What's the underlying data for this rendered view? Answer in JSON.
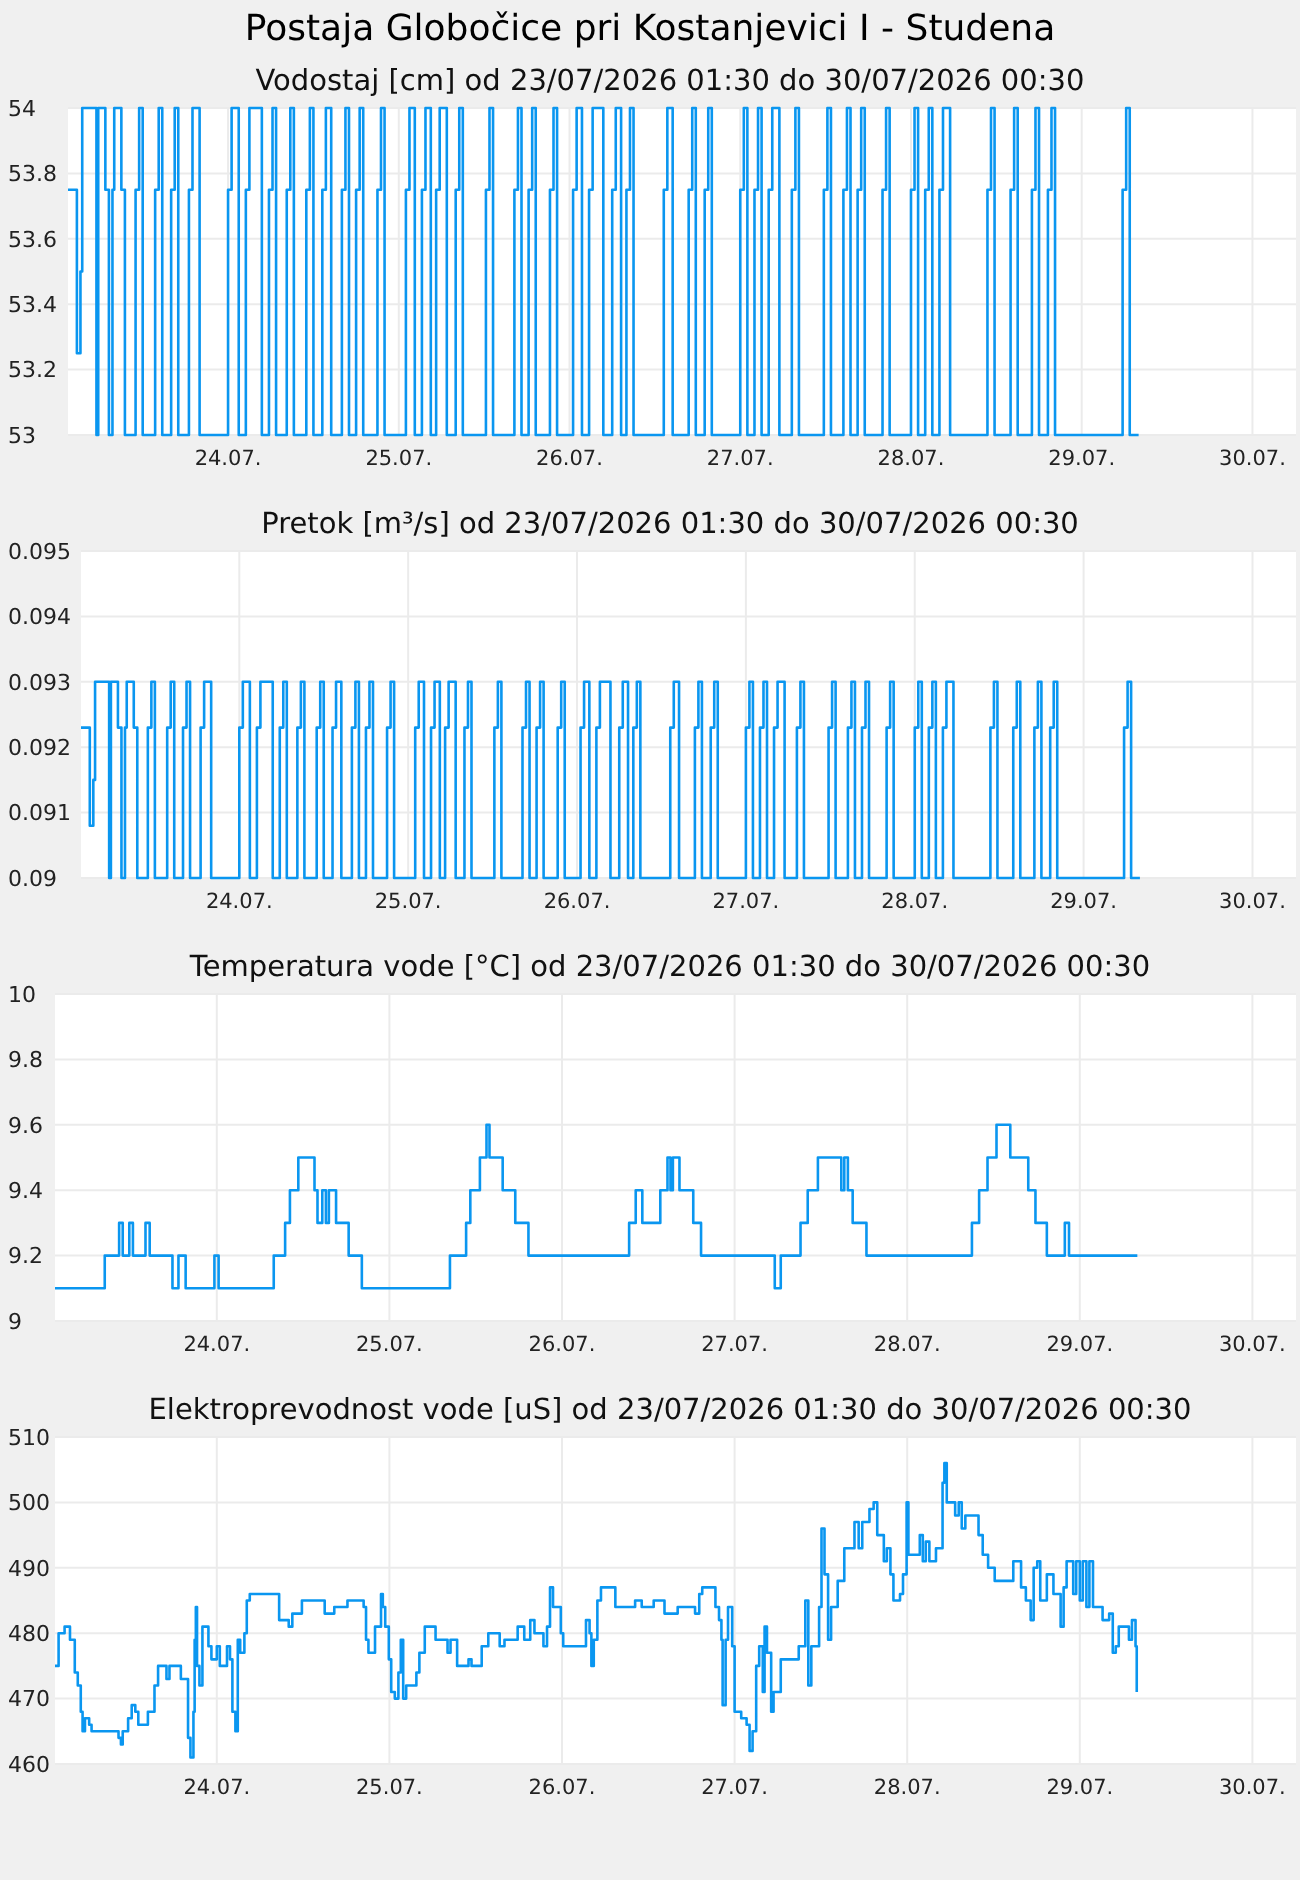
{
  "chart_data": [
    {
      "type": "step",
      "title": "Postaja Globočice pri Kostanjevici I - Studena",
      "subtitle": "Vodostaj [cm] od 23/07/2026 01:30 do 30/07/2026 00:30",
      "color": "#0a96f0",
      "grid": true,
      "xlim": [
        "2026-07-23T01:30",
        "2026-07-30T00:30"
      ],
      "xticks": [
        {
          "value": "2026-07-24",
          "label": "24.07."
        },
        {
          "value": "2026-07-25",
          "label": "25.07."
        },
        {
          "value": "2026-07-26",
          "label": "26.07."
        },
        {
          "value": "2026-07-27",
          "label": "27.07."
        },
        {
          "value": "2026-07-28",
          "label": "28.07."
        },
        {
          "value": "2026-07-29",
          "label": "29.07."
        },
        {
          "value": "2026-07-30",
          "label": "30.07."
        }
      ],
      "ylim": [
        53,
        54
      ],
      "yticks": [
        53,
        53.2,
        53.4,
        53.6,
        53.8,
        54
      ],
      "x": [
        "2026-07-23T01:30",
        "2026-07-23T02:45",
        "2026-07-23T03:15",
        "2026-07-23T03:30",
        "2026-07-23T05:30",
        "2026-07-23T05:45",
        "2026-07-23T06:45",
        "2026-07-23T07:15",
        "2026-07-23T07:45",
        "2026-07-23T08:00",
        "2026-07-23T09:00",
        "2026-07-23T09:30",
        "2026-07-23T11:00",
        "2026-07-23T11:30",
        "2026-07-23T12:00",
        "2026-07-23T13:45",
        "2026-07-23T14:15",
        "2026-07-23T14:45",
        "2026-07-23T16:00",
        "2026-07-23T16:30",
        "2026-07-23T17:00",
        "2026-07-23T18:30",
        "2026-07-23T19:00",
        "2026-07-23T20:00",
        "2026-07-24T00:00",
        "2026-07-24T00:30",
        "2026-07-24T01:30",
        "2026-07-24T02:30",
        "2026-07-24T03:00",
        "2026-07-24T04:45",
        "2026-07-24T05:45",
        "2026-07-24T06:15",
        "2026-07-24T06:45",
        "2026-07-24T08:15",
        "2026-07-24T08:45",
        "2026-07-24T09:15",
        "2026-07-24T11:00",
        "2026-07-24T11:30",
        "2026-07-24T12:00",
        "2026-07-24T13:15",
        "2026-07-24T13:45",
        "2026-07-24T14:30",
        "2026-07-24T16:00",
        "2026-07-24T16:30",
        "2026-07-24T17:00",
        "2026-07-24T18:00",
        "2026-07-24T18:30",
        "2026-07-24T19:00",
        "2026-07-24T21:00",
        "2026-07-24T21:30",
        "2026-07-24T22:00",
        "2026-07-25T01:00",
        "2026-07-25T01:30",
        "2026-07-25T02:15",
        "2026-07-25T03:15",
        "2026-07-25T03:45",
        "2026-07-25T04:30",
        "2026-07-25T05:15",
        "2026-07-25T05:45",
        "2026-07-25T06:45",
        "2026-07-25T08:00",
        "2026-07-25T08:30",
        "2026-07-25T09:00",
        "2026-07-25T12:15",
        "2026-07-25T12:45",
        "2026-07-25T13:15",
        "2026-07-25T16:15",
        "2026-07-25T16:45",
        "2026-07-25T17:15",
        "2026-07-25T18:15",
        "2026-07-25T18:45",
        "2026-07-25T19:15",
        "2026-07-25T21:15",
        "2026-07-25T21:45",
        "2026-07-25T22:15",
        "2026-07-26T00:30",
        "2026-07-26T01:00",
        "2026-07-26T01:45",
        "2026-07-26T02:45",
        "2026-07-26T03:15",
        "2026-07-26T04:45",
        "2026-07-26T06:00",
        "2026-07-26T06:30",
        "2026-07-26T07:15",
        "2026-07-26T08:00",
        "2026-07-26T08:30",
        "2026-07-26T09:00",
        "2026-07-26T13:15",
        "2026-07-26T13:45",
        "2026-07-26T14:30",
        "2026-07-26T16:45",
        "2026-07-26T17:15",
        "2026-07-26T17:45",
        "2026-07-26T19:00",
        "2026-07-26T19:30",
        "2026-07-26T20:00",
        "2026-07-27T00:00",
        "2026-07-27T00:30",
        "2026-07-27T01:00",
        "2026-07-27T02:00",
        "2026-07-27T02:30",
        "2026-07-27T03:00",
        "2026-07-27T04:00",
        "2026-07-27T04:30",
        "2026-07-27T05:30",
        "2026-07-27T07:15",
        "2026-07-27T07:45",
        "2026-07-27T08:15",
        "2026-07-27T11:45",
        "2026-07-27T12:15",
        "2026-07-27T12:45",
        "2026-07-27T14:30",
        "2026-07-27T15:00",
        "2026-07-27T15:30",
        "2026-07-27T16:30",
        "2026-07-27T17:00",
        "2026-07-27T17:30",
        "2026-07-27T20:00",
        "2026-07-27T20:30",
        "2026-07-27T21:00",
        "2026-07-28T00:00",
        "2026-07-28T00:30",
        "2026-07-28T01:00",
        "2026-07-28T02:00",
        "2026-07-28T02:30",
        "2026-07-28T03:00",
        "2026-07-28T04:00",
        "2026-07-28T04:30",
        "2026-07-28T05:30",
        "2026-07-28T10:45",
        "2026-07-28T11:15",
        "2026-07-28T11:45",
        "2026-07-28T14:00",
        "2026-07-28T14:30",
        "2026-07-28T15:00",
        "2026-07-28T17:00",
        "2026-07-28T17:30",
        "2026-07-28T18:00",
        "2026-07-28T19:15",
        "2026-07-28T19:45",
        "2026-07-28T20:15",
        "2026-07-29T05:45",
        "2026-07-29T06:15",
        "2026-07-29T06:45",
        "2026-07-29T08:00"
      ],
      "values": [
        53.75,
        53.25,
        53.5,
        54,
        53,
        54,
        53.75,
        53,
        53.75,
        54,
        53.75,
        53,
        53.75,
        54,
        53,
        53.75,
        54,
        53,
        53.75,
        54,
        53,
        53.75,
        54,
        53,
        53.75,
        54,
        53,
        53.75,
        54,
        53,
        53.75,
        54,
        53,
        53.75,
        54,
        53,
        53.75,
        54,
        53,
        53.75,
        54,
        53,
        53.75,
        54,
        53,
        53.75,
        54,
        53,
        53.75,
        54,
        53,
        53.75,
        54,
        53,
        53.75,
        54,
        53,
        53.75,
        54,
        53,
        53.75,
        54,
        53,
        53.75,
        54,
        53,
        53.75,
        54,
        53,
        53.75,
        54,
        53,
        53.75,
        54,
        53,
        53.75,
        54,
        53,
        53.75,
        54,
        53,
        53.75,
        54,
        53,
        53.75,
        54,
        53,
        53.75,
        54,
        53,
        53.75,
        54,
        53,
        53.75,
        54,
        53,
        53.75,
        54,
        53,
        53.75,
        54,
        53,
        53.75,
        54,
        53,
        53.75,
        54,
        53,
        53.75,
        54,
        53,
        53.75,
        54,
        53,
        53.75,
        54,
        53,
        53.75,
        54,
        53,
        53.75,
        54,
        53,
        53.75,
        54,
        53,
        53.75,
        54,
        53,
        53.75,
        54,
        53,
        53.75,
        54,
        53,
        53.75,
        54,
        53,
        53.75,
        54,
        53,
        53.75,
        54,
        53,
        53
      ]
    },
    {
      "type": "step",
      "title": "Pretok [m³/s] od 23/07/2026 01:30 do 30/07/2026 00:30",
      "color": "#0a96f0",
      "grid": true,
      "xlim": [
        "2026-07-23T01:30",
        "2026-07-30T00:30"
      ],
      "xticks": [
        {
          "value": "2026-07-24",
          "label": "24.07."
        },
        {
          "value": "2026-07-25",
          "label": "25.07."
        },
        {
          "value": "2026-07-26",
          "label": "26.07."
        },
        {
          "value": "2026-07-27",
          "label": "27.07."
        },
        {
          "value": "2026-07-28",
          "label": "28.07."
        },
        {
          "value": "2026-07-29",
          "label": "29.07."
        },
        {
          "value": "2026-07-30",
          "label": "30.07."
        }
      ],
      "ylim": [
        0.09,
        0.095
      ],
      "yticks": [
        0.09,
        0.091,
        0.092,
        0.093,
        0.094,
        0.095
      ],
      "x": [
        "2026-07-23T01:30",
        "2026-07-23T02:45",
        "2026-07-23T03:15",
        "2026-07-23T03:30",
        "2026-07-23T05:30",
        "2026-07-23T05:45",
        "2026-07-23T06:45",
        "2026-07-23T07:15",
        "2026-07-23T07:45",
        "2026-07-23T08:00",
        "2026-07-23T09:00",
        "2026-07-23T09:30",
        "2026-07-23T11:00",
        "2026-07-23T11:30",
        "2026-07-23T12:00",
        "2026-07-23T13:45",
        "2026-07-23T14:15",
        "2026-07-23T14:45",
        "2026-07-23T16:00",
        "2026-07-23T16:30",
        "2026-07-23T17:00",
        "2026-07-23T18:30",
        "2026-07-23T19:00",
        "2026-07-23T20:00",
        "2026-07-24T00:00",
        "2026-07-24T00:30",
        "2026-07-24T01:30",
        "2026-07-24T02:30",
        "2026-07-24T03:00",
        "2026-07-24T04:45",
        "2026-07-24T05:45",
        "2026-07-24T06:15",
        "2026-07-24T06:45",
        "2026-07-24T08:15",
        "2026-07-24T08:45",
        "2026-07-24T09:15",
        "2026-07-24T11:00",
        "2026-07-24T11:30",
        "2026-07-24T12:00",
        "2026-07-24T13:15",
        "2026-07-24T13:45",
        "2026-07-24T14:30",
        "2026-07-24T16:00",
        "2026-07-24T16:30",
        "2026-07-24T17:00",
        "2026-07-24T18:00",
        "2026-07-24T18:30",
        "2026-07-24T19:00",
        "2026-07-24T21:00",
        "2026-07-24T21:30",
        "2026-07-24T22:00",
        "2026-07-25T01:00",
        "2026-07-25T01:30",
        "2026-07-25T02:15",
        "2026-07-25T03:15",
        "2026-07-25T03:45",
        "2026-07-25T04:30",
        "2026-07-25T05:15",
        "2026-07-25T05:45",
        "2026-07-25T06:45",
        "2026-07-25T08:00",
        "2026-07-25T08:30",
        "2026-07-25T09:00",
        "2026-07-25T12:15",
        "2026-07-25T12:45",
        "2026-07-25T13:15",
        "2026-07-25T16:15",
        "2026-07-25T16:45",
        "2026-07-25T17:15",
        "2026-07-25T18:15",
        "2026-07-25T18:45",
        "2026-07-25T19:15",
        "2026-07-25T21:15",
        "2026-07-25T21:45",
        "2026-07-25T22:15",
        "2026-07-26T00:30",
        "2026-07-26T01:00",
        "2026-07-26T01:45",
        "2026-07-26T02:45",
        "2026-07-26T03:15",
        "2026-07-26T04:45",
        "2026-07-26T06:00",
        "2026-07-26T06:30",
        "2026-07-26T07:15",
        "2026-07-26T08:00",
        "2026-07-26T08:30",
        "2026-07-26T09:00",
        "2026-07-26T13:15",
        "2026-07-26T13:45",
        "2026-07-26T14:30",
        "2026-07-26T16:45",
        "2026-07-26T17:15",
        "2026-07-26T17:45",
        "2026-07-26T19:00",
        "2026-07-26T19:30",
        "2026-07-26T20:00",
        "2026-07-27T00:00",
        "2026-07-27T00:30",
        "2026-07-27T01:00",
        "2026-07-27T02:00",
        "2026-07-27T02:30",
        "2026-07-27T03:00",
        "2026-07-27T04:00",
        "2026-07-27T04:30",
        "2026-07-27T05:30",
        "2026-07-27T07:15",
        "2026-07-27T07:45",
        "2026-07-27T08:15",
        "2026-07-27T11:45",
        "2026-07-27T12:15",
        "2026-07-27T12:45",
        "2026-07-27T14:30",
        "2026-07-27T15:00",
        "2026-07-27T15:30",
        "2026-07-27T16:30",
        "2026-07-27T17:00",
        "2026-07-27T17:30",
        "2026-07-27T20:00",
        "2026-07-27T20:30",
        "2026-07-27T21:00",
        "2026-07-28T00:00",
        "2026-07-28T00:30",
        "2026-07-28T01:00",
        "2026-07-28T02:00",
        "2026-07-28T02:30",
        "2026-07-28T03:00",
        "2026-07-28T04:00",
        "2026-07-28T04:30",
        "2026-07-28T05:30",
        "2026-07-28T10:45",
        "2026-07-28T11:15",
        "2026-07-28T11:45",
        "2026-07-28T14:00",
        "2026-07-28T14:30",
        "2026-07-28T15:00",
        "2026-07-28T17:00",
        "2026-07-28T17:30",
        "2026-07-28T18:00",
        "2026-07-28T19:15",
        "2026-07-28T19:45",
        "2026-07-28T20:15",
        "2026-07-29T05:45",
        "2026-07-29T06:15",
        "2026-07-29T06:45",
        "2026-07-29T08:00"
      ],
      "values": [
        0.0923,
        0.0908,
        0.0915,
        0.093,
        0.09,
        0.093,
        0.0923,
        0.09,
        0.0923,
        0.093,
        0.0923,
        0.09,
        0.0923,
        0.093,
        0.09,
        0.0923,
        0.093,
        0.09,
        0.0923,
        0.093,
        0.09,
        0.0923,
        0.093,
        0.09,
        0.0923,
        0.093,
        0.09,
        0.0923,
        0.093,
        0.09,
        0.0923,
        0.093,
        0.09,
        0.0923,
        0.093,
        0.09,
        0.0923,
        0.093,
        0.09,
        0.0923,
        0.093,
        0.09,
        0.0923,
        0.093,
        0.09,
        0.0923,
        0.093,
        0.09,
        0.0923,
        0.093,
        0.09,
        0.0923,
        0.093,
        0.09,
        0.0923,
        0.093,
        0.09,
        0.0923,
        0.093,
        0.09,
        0.0923,
        0.093,
        0.09,
        0.0923,
        0.093,
        0.09,
        0.0923,
        0.093,
        0.09,
        0.0923,
        0.093,
        0.09,
        0.0923,
        0.093,
        0.09,
        0.0923,
        0.093,
        0.09,
        0.0923,
        0.093,
        0.09,
        0.0923,
        0.093,
        0.09,
        0.0923,
        0.093,
        0.09,
        0.0923,
        0.093,
        0.09,
        0.0923,
        0.093,
        0.09,
        0.0923,
        0.093,
        0.09,
        0.0923,
        0.093,
        0.09,
        0.0923,
        0.093,
        0.09,
        0.0923,
        0.093,
        0.09,
        0.0923,
        0.093,
        0.09,
        0.0923,
        0.093,
        0.09,
        0.0923,
        0.093,
        0.09,
        0.0923,
        0.093,
        0.09,
        0.0923,
        0.093,
        0.09,
        0.0923,
        0.093,
        0.09,
        0.0923,
        0.093,
        0.09,
        0.0923,
        0.093,
        0.09,
        0.0923,
        0.093,
        0.09,
        0.0923,
        0.093,
        0.09,
        0.0923,
        0.093,
        0.09,
        0.0923,
        0.093,
        0.09,
        0.0923,
        0.093,
        0.09,
        0.09
      ]
    },
    {
      "type": "step",
      "title": "Temperatura vode [°C] od 23/07/2026 01:30 do 30/07/2026 00:30",
      "color": "#0a96f0",
      "grid": true,
      "xlim": [
        "2026-07-23T01:30",
        "2026-07-30T00:30"
      ],
      "xticks": [
        {
          "value": "2026-07-24",
          "label": "24.07."
        },
        {
          "value": "2026-07-25",
          "label": "25.07."
        },
        {
          "value": "2026-07-26",
          "label": "26.07."
        },
        {
          "value": "2026-07-27",
          "label": "27.07."
        },
        {
          "value": "2026-07-28",
          "label": "28.07."
        },
        {
          "value": "2026-07-29",
          "label": "29.07."
        },
        {
          "value": "2026-07-30",
          "label": "30.07."
        }
      ],
      "ylim": [
        9,
        10
      ],
      "yticks": [
        9,
        9.2,
        9.4,
        9.6,
        9.8,
        10
      ],
      "x": [
        "2026-07-23T01:30",
        "2026-07-23T08:25",
        "2026-07-23T10:25",
        "2026-07-23T10:55",
        "2026-07-23T11:50",
        "2026-07-23T12:20",
        "2026-07-23T14:05",
        "2026-07-23T14:40",
        "2026-07-23T17:50",
        "2026-07-23T18:40",
        "2026-07-23T19:40",
        "2026-07-23T23:40",
        "2026-07-24T00:15",
        "2026-07-24T07:55",
        "2026-07-24T09:30",
        "2026-07-24T10:10",
        "2026-07-24T11:20",
        "2026-07-24T13:35",
        "2026-07-24T14:00",
        "2026-07-24T14:40",
        "2026-07-24T15:10",
        "2026-07-24T15:35",
        "2026-07-24T16:35",
        "2026-07-24T18:20",
        "2026-07-24T20:10",
        "2026-07-25T08:25",
        "2026-07-25T10:40",
        "2026-07-25T11:15",
        "2026-07-25T12:35",
        "2026-07-25T13:30",
        "2026-07-25T13:55",
        "2026-07-25T15:45",
        "2026-07-25T17:30",
        "2026-07-25T19:20",
        "2026-07-26T09:20",
        "2026-07-26T10:15",
        "2026-07-26T11:10",
        "2026-07-26T13:40",
        "2026-07-26T14:40",
        "2026-07-26T15:05",
        "2026-07-26T15:25",
        "2026-07-26T16:20",
        "2026-07-26T18:15",
        "2026-07-26T19:20",
        "2026-07-27T05:35",
        "2026-07-27T06:25",
        "2026-07-27T09:10",
        "2026-07-27T10:10",
        "2026-07-27T11:35",
        "2026-07-27T14:50",
        "2026-07-27T15:15",
        "2026-07-27T15:45",
        "2026-07-27T16:25",
        "2026-07-27T18:20",
        "2026-07-28T09:00",
        "2026-07-28T10:00",
        "2026-07-28T11:10",
        "2026-07-28T12:25",
        "2026-07-28T14:20",
        "2026-07-28T16:50",
        "2026-07-28T17:50",
        "2026-07-28T19:25",
        "2026-07-28T21:55",
        "2026-07-28T22:30",
        "2026-07-29T08:00"
      ],
      "values": [
        9.1,
        9.2,
        9.3,
        9.2,
        9.3,
        9.2,
        9.3,
        9.2,
        9.1,
        9.2,
        9.1,
        9.2,
        9.1,
        9.2,
        9.3,
        9.4,
        9.5,
        9.4,
        9.3,
        9.4,
        9.3,
        9.4,
        9.3,
        9.2,
        9.1,
        9.2,
        9.3,
        9.4,
        9.5,
        9.6,
        9.5,
        9.4,
        9.3,
        9.2,
        9.3,
        9.4,
        9.3,
        9.4,
        9.5,
        9.4,
        9.5,
        9.4,
        9.3,
        9.2,
        9.1,
        9.2,
        9.3,
        9.4,
        9.5,
        9.4,
        9.5,
        9.4,
        9.3,
        9.2,
        9.3,
        9.4,
        9.5,
        9.6,
        9.5,
        9.4,
        9.3,
        9.2,
        9.3,
        9.2,
        9.2
      ]
    },
    {
      "type": "step",
      "title": "Elektroprevodnost vode [uS] od 23/07/2026 01:30 do 30/07/2026 00:30",
      "color": "#0a96f0",
      "grid": true,
      "xlim": [
        "2026-07-23T01:30",
        "2026-07-30T00:30"
      ],
      "xticks": [
        {
          "value": "2026-07-24",
          "label": "24.07."
        },
        {
          "value": "2026-07-25",
          "label": "25.07."
        },
        {
          "value": "2026-07-26",
          "label": "26.07."
        },
        {
          "value": "2026-07-27",
          "label": "27.07."
        },
        {
          "value": "2026-07-28",
          "label": "28.07."
        },
        {
          "value": "2026-07-29",
          "label": "29.07."
        },
        {
          "value": "2026-07-30",
          "label": "30.07."
        }
      ],
      "ylim": [
        460,
        510
      ],
      "yticks": [
        460,
        470,
        480,
        490,
        500,
        510
      ],
      "x": [
        "2026-07-23T01:30",
        "2026-07-23T02:00",
        "2026-07-23T02:50",
        "2026-07-23T03:35",
        "2026-07-23T04:15",
        "2026-07-23T04:40",
        "2026-07-23T05:05",
        "2026-07-23T05:20",
        "2026-07-23T05:40",
        "2026-07-23T06:15",
        "2026-07-23T06:35",
        "2026-07-23T09:55",
        "2026-07-23T10:20",
        "2026-07-23T10:40",
        "2026-07-23T10:55",
        "2026-07-23T11:40",
        "2026-07-23T12:10",
        "2026-07-23T12:40",
        "2026-07-23T13:05",
        "2026-07-23T14:25",
        "2026-07-23T15:20",
        "2026-07-23T15:50",
        "2026-07-23T17:00",
        "2026-07-23T17:25",
        "2026-07-23T19:00",
        "2026-07-23T20:00",
        "2026-07-23T20:20",
        "2026-07-23T20:45",
        "2026-07-23T20:55",
        "2026-07-23T21:05",
        "2026-07-23T21:15",
        "2026-07-23T21:35",
        "2026-07-23T22:00",
        "2026-07-23T22:50",
        "2026-07-23T23:15",
        "2026-07-24T00:00",
        "2026-07-24T00:25",
        "2026-07-24T01:25",
        "2026-07-24T01:50",
        "2026-07-24T02:10",
        "2026-07-24T02:35",
        "2026-07-24T02:55",
        "2026-07-24T03:15",
        "2026-07-24T03:50",
        "2026-07-24T04:10",
        "2026-07-24T04:35",
        "2026-07-24T07:45",
        "2026-07-24T08:40",
        "2026-07-24T10:00",
        "2026-07-24T10:30",
        "2026-07-24T11:50",
        "2026-07-24T13:40",
        "2026-07-24T15:00",
        "2026-07-24T16:20",
        "2026-07-24T17:45",
        "2026-07-24T18:10",
        "2026-07-24T20:25",
        "2026-07-24T20:45",
        "2026-07-24T21:05",
        "2026-07-24T22:00",
        "2026-07-24T22:50",
        "2026-07-24T23:05",
        "2026-07-24T23:25",
        "2026-07-24T23:55",
        "2026-07-25T00:15",
        "2026-07-25T00:45",
        "2026-07-25T01:15",
        "2026-07-25T01:35",
        "2026-07-25T01:55",
        "2026-07-25T02:20",
        "2026-07-25T03:45",
        "2026-07-25T04:10",
        "2026-07-25T04:55",
        "2026-07-25T06:00",
        "2026-07-25T06:25",
        "2026-07-25T07:50",
        "2026-07-25T08:05",
        "2026-07-25T08:30",
        "2026-07-25T09:25",
        "2026-07-25T11:00",
        "2026-07-25T11:25",
        "2026-07-25T12:50",
        "2026-07-25T13:45",
        "2026-07-25T14:55",
        "2026-07-25T15:20",
        "2026-07-25T16:00",
        "2026-07-25T17:20",
        "2026-07-25T17:50",
        "2026-07-25T18:45",
        "2026-07-25T19:35",
        "2026-07-25T20:10",
        "2026-07-25T21:25",
        "2026-07-25T21:55",
        "2026-07-25T22:20",
        "2026-07-25T22:45",
        "2026-07-25T23:50",
        "2026-07-26T00:10",
        "2026-07-26T02:25",
        "2026-07-26T03:20",
        "2026-07-26T03:50",
        "2026-07-26T04:05",
        "2026-07-26T04:25",
        "2026-07-26T04:55",
        "2026-07-26T05:25",
        "2026-07-26T07:00",
        "2026-07-26T07:25",
        "2026-07-26T10:10",
        "2026-07-26T11:05",
        "2026-07-26T12:45",
        "2026-07-26T14:15",
        "2026-07-26T16:05",
        "2026-07-26T18:30",
        "2026-07-26T19:05",
        "2026-07-26T19:30",
        "2026-07-26T20:55",
        "2026-07-26T21:20",
        "2026-07-26T21:50",
        "2026-07-26T22:10",
        "2026-07-26T22:20",
        "2026-07-26T22:45",
        "2026-07-26T23:05",
        "2026-07-26T23:40",
        "2026-07-27T00:00",
        "2026-07-27T00:55",
        "2026-07-27T01:40",
        "2026-07-27T02:05",
        "2026-07-27T02:30",
        "2026-07-27T03:00",
        "2026-07-27T03:25",
        "2026-07-27T03:55",
        "2026-07-27T04:10",
        "2026-07-27T04:30",
        "2026-07-27T05:05",
        "2026-07-27T05:25",
        "2026-07-27T06:25",
        "2026-07-27T08:25",
        "2026-07-27T08:55",
        "2026-07-27T09:50",
        "2026-07-27T10:15",
        "2026-07-27T10:40",
        "2026-07-27T11:45",
        "2026-07-27T12:05",
        "2026-07-27T12:30",
        "2026-07-27T13:00",
        "2026-07-27T13:25",
        "2026-07-27T14:20",
        "2026-07-27T15:15",
        "2026-07-27T16:40",
        "2026-07-27T17:15",
        "2026-07-27T17:45",
        "2026-07-27T18:45",
        "2026-07-27T19:20",
        "2026-07-27T19:50",
        "2026-07-27T20:45",
        "2026-07-27T21:10",
        "2026-07-27T21:40",
        "2026-07-27T22:05",
        "2026-07-27T23:00",
        "2026-07-27T23:25",
        "2026-07-27T23:55",
        "2026-07-28T00:10",
        "2026-07-28T01:05",
        "2026-07-28T01:45",
        "2026-07-28T02:10",
        "2026-07-28T02:35",
        "2026-07-28T03:05",
        "2026-07-28T04:00",
        "2026-07-28T04:55",
        "2026-07-28T05:10",
        "2026-07-28T05:30",
        "2026-07-28T06:40",
        "2026-07-28T07:10",
        "2026-07-28T07:35",
        "2026-07-28T08:05",
        "2026-07-28T09:15",
        "2026-07-28T09:55",
        "2026-07-28T10:30",
        "2026-07-28T11:15",
        "2026-07-28T12:10",
        "2026-07-28T14:00",
        "2026-07-28T14:45",
        "2026-07-28T15:50",
        "2026-07-28T16:30",
        "2026-07-28T17:10",
        "2026-07-28T17:35",
        "2026-07-28T18:05",
        "2026-07-28T18:30",
        "2026-07-28T19:25",
        "2026-07-28T20:20",
        "2026-07-28T21:20",
        "2026-07-28T21:45",
        "2026-07-28T22:10",
        "2026-07-28T23:05",
        "2026-07-28T23:30",
        "2026-07-29T00:00",
        "2026-07-29T00:25",
        "2026-07-29T00:55",
        "2026-07-29T01:20",
        "2026-07-29T01:50",
        "2026-07-29T03:10",
        "2026-07-29T04:05",
        "2026-07-29T04:35",
        "2026-07-29T05:00",
        "2026-07-29T05:25",
        "2026-07-29T06:20",
        "2026-07-29T06:50",
        "2026-07-29T07:15",
        "2026-07-29T07:45",
        "2026-07-29T07:55"
      ],
      "values": [
        475,
        480,
        481,
        479,
        474,
        472,
        468,
        465,
        467,
        466,
        465,
        465,
        464,
        463,
        465,
        467,
        469,
        468,
        466,
        468,
        472,
        475,
        473,
        475,
        473,
        464,
        461,
        468,
        479,
        484,
        475,
        472,
        481,
        478,
        476,
        478,
        475,
        478,
        476,
        468,
        465,
        479,
        477,
        480,
        485,
        486,
        486,
        482,
        481,
        483,
        485,
        485,
        483,
        484,
        484,
        485,
        484,
        479,
        477,
        481,
        486,
        484,
        481,
        476,
        471,
        470,
        474,
        479,
        470,
        472,
        474,
        477,
        481,
        481,
        479,
        479,
        477,
        479,
        475,
        476,
        475,
        478,
        480,
        480,
        478,
        479,
        479,
        481,
        479,
        482,
        480,
        478,
        481,
        487,
        484,
        480,
        478,
        478,
        482,
        480,
        475,
        479,
        485,
        487,
        487,
        484,
        485,
        484,
        485,
        483,
        484,
        483,
        486,
        487,
        487,
        484,
        482,
        479,
        469,
        479,
        484,
        478,
        468,
        467,
        466,
        462,
        465,
        475,
        478,
        471,
        481,
        477,
        468,
        471,
        476,
        476,
        478,
        485,
        472,
        478,
        484,
        496,
        489,
        479,
        484,
        488,
        493,
        497,
        493,
        497,
        499,
        500,
        495,
        491,
        493,
        489,
        485,
        486,
        489,
        500,
        492,
        492,
        495,
        491,
        494,
        491,
        493,
        503,
        506,
        500,
        498,
        500,
        496,
        498,
        498,
        495,
        492,
        490,
        488,
        488,
        491,
        487,
        485,
        482,
        490,
        491,
        485,
        489,
        486,
        481,
        487,
        491,
        486,
        491,
        485,
        491,
        484,
        491,
        484,
        482,
        483,
        477,
        478,
        481,
        481,
        479,
        482,
        478,
        471
      ]
    }
  ]
}
